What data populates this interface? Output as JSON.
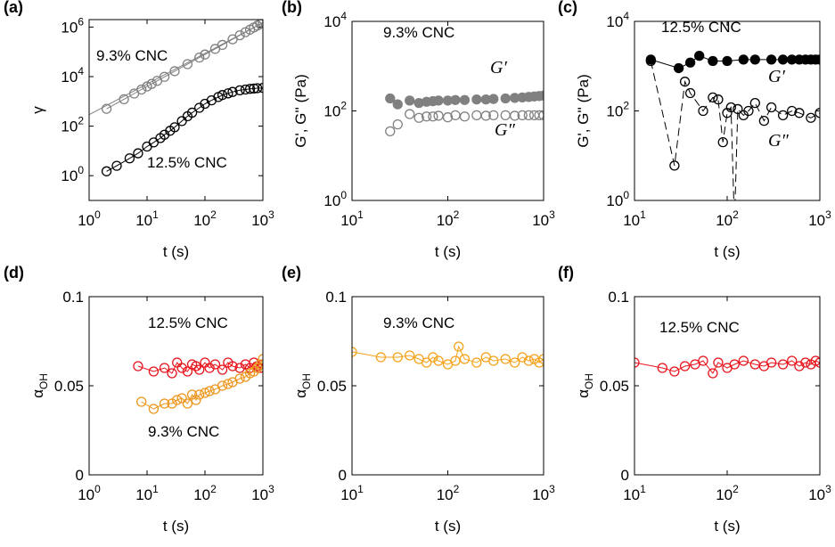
{
  "chart_data": [
    {
      "type": "line",
      "panel_label": "(a)",
      "xlabel": "t (s)",
      "ylabel": "γ",
      "xscale": "log",
      "yscale": "log",
      "xlim": [
        1,
        1000
      ],
      "ylim": [
        0.1,
        2000000
      ],
      "xticks": [
        {
          "value": 1,
          "label": "10^0"
        },
        {
          "value": 10,
          "label": "10^1"
        },
        {
          "value": 100,
          "label": "10^2"
        },
        {
          "value": 1000,
          "label": "10^3"
        }
      ],
      "yticks": [
        {
          "value": 1,
          "label": "10^0"
        },
        {
          "value": 100,
          "label": "10^2"
        },
        {
          "value": 10000,
          "label": "10^4"
        },
        {
          "value": 1000000,
          "label": "10^6"
        }
      ],
      "fit": {
        "color": "#808080",
        "x": [
          1,
          1000
        ],
        "values": [
          290,
          1500000
        ]
      },
      "series": [
        {
          "name": "9.3% CNC",
          "color": "#808080",
          "filled": false,
          "linestyle": "solid",
          "x": [
            2,
            4,
            6,
            8,
            10,
            12,
            15,
            20,
            30,
            50,
            80,
            100,
            150,
            200,
            300,
            400,
            500,
            600,
            700,
            800,
            900,
            1000
          ],
          "values": [
            500,
            1220,
            2070,
            3000,
            4000,
            5060,
            6740,
            9770,
            16500,
            31800,
            58500,
            78000,
            131000,
            190000,
            321000,
            466000,
            621000,
            787000,
            960000,
            1140000,
            1330000,
            1520000
          ]
        },
        {
          "name": "12.5% CNC",
          "color": "#000000",
          "filled": false,
          "linestyle": "solid",
          "x": [
            2,
            3,
            5,
            7,
            10,
            13,
            17,
            20,
            25,
            30,
            40,
            50,
            60,
            80,
            100,
            130,
            170,
            200,
            250,
            300,
            400,
            500,
            600,
            700,
            800,
            1000
          ],
          "values": [
            1.5,
            2.5,
            5,
            8,
            15,
            22,
            33,
            45,
            65,
            90,
            160,
            250,
            350,
            550,
            800,
            1100,
            1500,
            1800,
            2100,
            2400,
            2800,
            3000,
            3200,
            3300,
            3400,
            3500
          ]
        }
      ]
    },
    {
      "type": "line",
      "panel_label": "(b)",
      "xlabel": "t (s)",
      "ylabel": "G', G'' (Pa)",
      "xscale": "log",
      "yscale": "log",
      "xlim": [
        10,
        1000
      ],
      "ylim": [
        1,
        10000
      ],
      "xticks": [
        {
          "value": 10,
          "label": "10^1"
        },
        {
          "value": 100,
          "label": "10^2"
        },
        {
          "value": 1000,
          "label": "10^3"
        }
      ],
      "yticks": [
        {
          "value": 1,
          "label": "10^0"
        },
        {
          "value": 100,
          "label": "10^2"
        },
        {
          "value": 10000,
          "label": "10^4"
        }
      ],
      "annotation": {
        "text": "9.3% CNC",
        "color": "#808080"
      },
      "series": [
        {
          "name": "G′",
          "color": "#808080",
          "filled": true,
          "linestyle": "none",
          "x": [
            25,
            30,
            40,
            50,
            60,
            70,
            80,
            100,
            120,
            150,
            200,
            250,
            300,
            400,
            500,
            600,
            700,
            800,
            900,
            1000
          ],
          "values": [
            190,
            140,
            170,
            150,
            160,
            165,
            170,
            170,
            175,
            175,
            180,
            180,
            185,
            190,
            195,
            200,
            205,
            210,
            215,
            220
          ]
        },
        {
          "name": "G″",
          "color": "#808080",
          "filled": false,
          "linestyle": "none",
          "x": [
            25,
            30,
            40,
            50,
            60,
            70,
            80,
            100,
            120,
            150,
            200,
            250,
            300,
            400,
            500,
            600,
            700,
            800,
            900,
            1000
          ],
          "values": [
            35,
            50,
            85,
            70,
            75,
            75,
            78,
            72,
            80,
            75,
            80,
            78,
            80,
            80,
            78,
            80,
            80,
            80,
            80,
            80
          ]
        }
      ]
    },
    {
      "type": "line",
      "panel_label": "(c)",
      "xlabel": "t (s)",
      "ylabel": "G', G'' (Pa)",
      "xscale": "log",
      "yscale": "log",
      "xlim": [
        10,
        1000
      ],
      "ylim": [
        1,
        10000
      ],
      "xticks": [
        {
          "value": 10,
          "label": "10^1"
        },
        {
          "value": 100,
          "label": "10^2"
        },
        {
          "value": 1000,
          "label": "10^3"
        }
      ],
      "yticks": [
        {
          "value": 1,
          "label": "10^0"
        },
        {
          "value": 100,
          "label": "10^2"
        },
        {
          "value": 10000,
          "label": "10^4"
        }
      ],
      "annotation": {
        "text": "12.5% CNC",
        "color": "#000000"
      },
      "series": [
        {
          "name": "G′",
          "color": "#000000",
          "filled": true,
          "linestyle": "solid",
          "x": [
            15,
            30,
            40,
            50,
            70,
            100,
            150,
            200,
            300,
            400,
            500,
            600,
            700,
            800,
            900,
            1000
          ],
          "values": [
            1400,
            900,
            1200,
            1700,
            1300,
            1300,
            1400,
            1400,
            1400,
            1400,
            1400,
            1400,
            1400,
            1400,
            1400,
            1400
          ]
        },
        {
          "name": "G″",
          "color": "#000000",
          "filled": false,
          "linestyle": "dashed",
          "x": [
            15,
            27,
            35,
            40,
            55,
            70,
            80,
            90,
            100,
            110,
            120,
            130,
            150,
            170,
            200,
            250,
            300,
            400,
            500,
            600,
            800,
            1000
          ],
          "values": [
            1300,
            6,
            450,
            250,
            100,
            200,
            180,
            20,
            90,
            120,
            0.3,
            110,
            80,
            100,
            150,
            60,
            120,
            80,
            100,
            90,
            70,
            90
          ]
        }
      ]
    },
    {
      "type": "line",
      "panel_label": "(d)",
      "xlabel": "t (s)",
      "ylabel": "α_OH",
      "xscale": "log",
      "yscale": "linear",
      "xlim": [
        1,
        1000
      ],
      "ylim": [
        0,
        0.1
      ],
      "xticks": [
        {
          "value": 1,
          "label": "10^0"
        },
        {
          "value": 10,
          "label": "10^1"
        },
        {
          "value": 100,
          "label": "10^2"
        },
        {
          "value": 1000,
          "label": "10^3"
        }
      ],
      "yticks": [
        0,
        0.05,
        0.1
      ],
      "series": [
        {
          "name": "12.5% CNC",
          "color": "#e8141c",
          "filled": false,
          "linestyle": "solid",
          "x": [
            7,
            13,
            20,
            27,
            33,
            40,
            50,
            60,
            70,
            80,
            100,
            120,
            150,
            200,
            250,
            300,
            400,
            500,
            600,
            700,
            800,
            900,
            1000
          ],
          "values": [
            0.061,
            0.058,
            0.06,
            0.057,
            0.063,
            0.06,
            0.058,
            0.062,
            0.061,
            0.059,
            0.063,
            0.06,
            0.062,
            0.059,
            0.063,
            0.061,
            0.06,
            0.062,
            0.06,
            0.063,
            0.061,
            0.06,
            0.062
          ]
        },
        {
          "name": "9.3% CNC",
          "color": "#ec961e",
          "filled": false,
          "linestyle": "solid",
          "x": [
            8,
            13,
            20,
            27,
            33,
            40,
            50,
            60,
            70,
            80,
            100,
            120,
            150,
            200,
            250,
            300,
            400,
            500,
            600,
            700,
            800,
            900,
            1000
          ],
          "values": [
            0.041,
            0.037,
            0.04,
            0.04,
            0.042,
            0.043,
            0.04,
            0.045,
            0.042,
            0.045,
            0.046,
            0.047,
            0.048,
            0.05,
            0.051,
            0.052,
            0.054,
            0.055,
            0.057,
            0.058,
            0.06,
            0.062,
            0.065
          ]
        }
      ]
    },
    {
      "type": "line",
      "panel_label": "(e)",
      "xlabel": "t (s)",
      "ylabel": "α_OH",
      "xscale": "log",
      "yscale": "linear",
      "xlim": [
        10,
        1000
      ],
      "ylim": [
        0,
        0.1
      ],
      "xticks": [
        {
          "value": 10,
          "label": "10^1"
        },
        {
          "value": 100,
          "label": "10^2"
        },
        {
          "value": 1000,
          "label": "10^3"
        }
      ],
      "yticks": [
        0,
        0.05,
        0.1
      ],
      "series": [
        {
          "name": "9.3% CNC",
          "color": "#f5a21c",
          "filled": false,
          "linestyle": "solid",
          "x": [
            10,
            20,
            30,
            40,
            50,
            60,
            70,
            80,
            100,
            120,
            130,
            150,
            200,
            250,
            300,
            400,
            500,
            600,
            700,
            800,
            900,
            1000
          ],
          "values": [
            0.069,
            0.066,
            0.066,
            0.067,
            0.065,
            0.063,
            0.066,
            0.064,
            0.062,
            0.064,
            0.072,
            0.065,
            0.063,
            0.066,
            0.064,
            0.065,
            0.063,
            0.066,
            0.064,
            0.065,
            0.063,
            0.065
          ]
        }
      ]
    },
    {
      "type": "line",
      "panel_label": "(f)",
      "xlabel": "t (s)",
      "ylabel": "α_OH",
      "xscale": "log",
      "yscale": "linear",
      "xlim": [
        10,
        1000
      ],
      "ylim": [
        0,
        0.1
      ],
      "xticks": [
        {
          "value": 10,
          "label": "10^1"
        },
        {
          "value": 100,
          "label": "10^2"
        },
        {
          "value": 1000,
          "label": "10^3"
        }
      ],
      "yticks": [
        0,
        0.05,
        0.1
      ],
      "series": [
        {
          "name": "12.5% CNC",
          "color": "#e8141c",
          "filled": false,
          "linestyle": "solid",
          "x": [
            10,
            20,
            27,
            35,
            45,
            55,
            70,
            80,
            100,
            120,
            150,
            200,
            250,
            300,
            400,
            500,
            600,
            700,
            800,
            900,
            1000
          ],
          "values": [
            0.063,
            0.06,
            0.058,
            0.061,
            0.062,
            0.064,
            0.057,
            0.063,
            0.06,
            0.062,
            0.064,
            0.062,
            0.061,
            0.063,
            0.062,
            0.064,
            0.061,
            0.063,
            0.062,
            0.064,
            0.063
          ]
        }
      ]
    }
  ]
}
